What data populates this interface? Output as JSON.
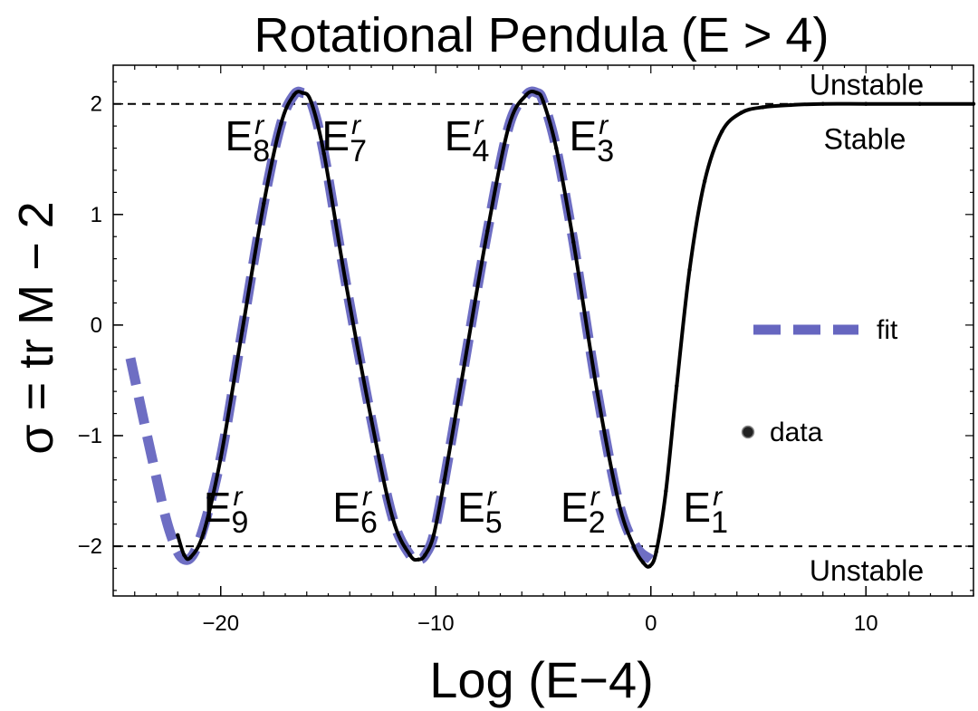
{
  "chart_data": {
    "type": "line",
    "title": "Rotational Pendula (E > 4)",
    "xlabel": "Log (E−4)",
    "ylabel": "σ = tr M − 2",
    "xlim": [
      -25,
      15
    ],
    "ylim": [
      -2.45,
      2.35
    ],
    "x_ticks": [
      -20,
      -10,
      0,
      10
    ],
    "x_tick_labels": [
      "−20",
      "−10",
      "0",
      "10"
    ],
    "y_ticks": [
      -2,
      -1,
      0,
      1,
      2
    ],
    "y_tick_labels": [
      "−2",
      "−1",
      "0",
      "1",
      "2"
    ],
    "reference_lines": [
      {
        "y": 2,
        "style": "dashed"
      },
      {
        "y": -2,
        "style": "dashed"
      }
    ],
    "region_labels": [
      {
        "text": "Unstable",
        "near_y": 2,
        "side": "above"
      },
      {
        "text": "Stable",
        "near_y": 2,
        "side": "below"
      },
      {
        "text": "Unstable",
        "near_y": -2,
        "side": "below"
      }
    ],
    "series": [
      {
        "name": "data",
        "marker": "dots",
        "color": "#000000",
        "x": [
          -22.0,
          -21.7,
          -21.4,
          -20.8,
          -20.0,
          -19.0,
          -18.0,
          -17.2,
          -16.6,
          -16.2,
          -15.8,
          -15.2,
          -14.2,
          -13.0,
          -12.0,
          -11.2,
          -10.8,
          -10.5,
          -10.1,
          -9.6,
          -8.8,
          -7.6,
          -6.6,
          -5.8,
          -5.3,
          -5.0,
          -4.4,
          -3.6,
          -2.5,
          -1.5,
          -0.8,
          -0.35,
          -0.05,
          0.25,
          0.7,
          1.2,
          1.8,
          2.5,
          3.3,
          4.2,
          5.2,
          6.5,
          8.0,
          10.0,
          12.5,
          15.0
        ],
        "y": [
          -1.9,
          -2.08,
          -2.1,
          -1.88,
          -1.2,
          -0.05,
          1.1,
          1.82,
          2.08,
          2.1,
          2.02,
          1.55,
          0.4,
          -0.85,
          -1.75,
          -2.08,
          -2.12,
          -2.08,
          -1.9,
          -1.4,
          -0.5,
          0.85,
          1.8,
          2.08,
          2.1,
          2.02,
          1.6,
          0.75,
          -0.6,
          -1.6,
          -2.0,
          -2.15,
          -2.18,
          -2.05,
          -1.5,
          -0.55,
          0.5,
          1.3,
          1.75,
          1.92,
          1.97,
          1.99,
          2.0,
          2.0,
          2.0,
          2.0
        ]
      },
      {
        "name": "fit",
        "style": "dashed-thick",
        "color": "#6666c0",
        "x": [
          -24.2,
          -23.2,
          -22.4,
          -21.7,
          -21.0,
          -20.0,
          -19.0,
          -18.0,
          -17.2,
          -16.6,
          -16.2,
          -15.8,
          -15.2,
          -14.2,
          -13.0,
          -12.0,
          -11.2,
          -10.8,
          -10.5,
          -10.1,
          -9.6,
          -8.8,
          -7.6,
          -6.6,
          -5.8,
          -5.3,
          -5.0,
          -4.4,
          -3.6,
          -2.5,
          -1.5,
          -0.7,
          0.0
        ],
        "y": [
          -0.3,
          -1.2,
          -1.85,
          -2.12,
          -1.95,
          -1.2,
          -0.05,
          1.1,
          1.82,
          2.08,
          2.1,
          2.02,
          1.55,
          0.4,
          -0.85,
          -1.75,
          -2.08,
          -2.12,
          -2.08,
          -1.9,
          -1.4,
          -0.5,
          0.85,
          1.8,
          2.08,
          2.1,
          2.02,
          1.6,
          0.75,
          -0.6,
          -1.6,
          -2.0,
          -2.12
        ]
      }
    ],
    "legend": {
      "placement": "right",
      "entries": [
        "fit",
        "data"
      ]
    },
    "energy_labels": [
      {
        "base": "E",
        "sup": "r",
        "sub": "8",
        "x": -19.8,
        "y": 1.58
      },
      {
        "base": "E",
        "sup": "r",
        "sub": "7",
        "x": -15.3,
        "y": 1.58
      },
      {
        "base": "E",
        "sup": "r",
        "sub": "4",
        "x": -9.6,
        "y": 1.58
      },
      {
        "base": "E",
        "sup": "r",
        "sub": "3",
        "x": -3.8,
        "y": 1.58
      },
      {
        "base": "E",
        "sup": "r",
        "sub": "9",
        "x": -20.8,
        "y": -1.78
      },
      {
        "base": "E",
        "sup": "r",
        "sub": "6",
        "x": -14.8,
        "y": -1.78
      },
      {
        "base": "E",
        "sup": "r",
        "sub": "5",
        "x": -9.0,
        "y": -1.78
      },
      {
        "base": "E",
        "sup": "r",
        "sub": "2",
        "x": -4.2,
        "y": -1.78
      },
      {
        "base": "E",
        "sup": "r",
        "sub": "1",
        "x": 1.5,
        "y": -1.78
      }
    ]
  }
}
